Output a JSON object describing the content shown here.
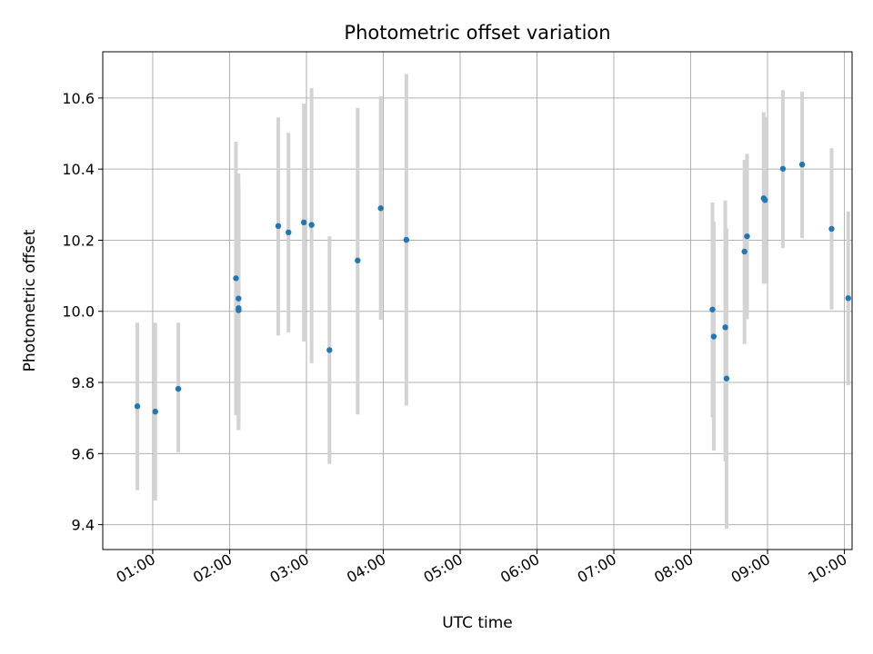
{
  "chart_data": {
    "type": "scatter",
    "title": "Photometric offset variation",
    "xlabel": "UTC time",
    "ylabel": "Photometric offset",
    "xlim": [
      "00:21",
      "10:06"
    ],
    "ylim": [
      9.33,
      10.73
    ],
    "grid": true,
    "x_ticks": [
      "01:00",
      "02:00",
      "03:00",
      "04:00",
      "05:00",
      "06:00",
      "07:00",
      "08:00",
      "09:00",
      "10:00"
    ],
    "y_ticks": [
      9.4,
      9.6,
      9.8,
      10.0,
      10.2,
      10.4,
      10.6
    ],
    "y_tick_labels": [
      "9.4",
      "9.6",
      "9.8",
      "10.0",
      "10.2",
      "10.4",
      "10.6"
    ],
    "colors": {
      "point": "#1f77b4",
      "errorbar": "#d3d3d3",
      "grid": "#b0b0b0"
    },
    "points": [
      {
        "t": "00:48",
        "y": 9.733,
        "lo": 9.497,
        "hi": 9.968
      },
      {
        "t": "01:02",
        "y": 9.718,
        "lo": 9.468,
        "hi": 9.968
      },
      {
        "t": "01:20",
        "y": 9.782,
        "lo": 9.603,
        "hi": 9.968
      },
      {
        "t": "02:05",
        "y": 10.093,
        "lo": 9.708,
        "hi": 10.477
      },
      {
        "t": "02:07",
        "y": 10.036,
        "lo": 9.685,
        "hi": 10.388
      },
      {
        "t": "02:07",
        "y": 10.009,
        "lo": 9.666,
        "hi": 10.349
      },
      {
        "t": "02:07",
        "y": 10.003,
        "lo": 9.666,
        "hi": 10.349
      },
      {
        "t": "02:38",
        "y": 10.24,
        "lo": 9.932,
        "hi": 10.545
      },
      {
        "t": "02:46",
        "y": 10.222,
        "lo": 9.941,
        "hi": 10.502
      },
      {
        "t": "02:58",
        "y": 10.25,
        "lo": 9.915,
        "hi": 10.584
      },
      {
        "t": "03:04",
        "y": 10.243,
        "lo": 9.854,
        "hi": 10.628
      },
      {
        "t": "03:18",
        "y": 9.891,
        "lo": 9.571,
        "hi": 10.211
      },
      {
        "t": "03:40",
        "y": 10.143,
        "lo": 9.71,
        "hi": 10.572
      },
      {
        "t": "03:58",
        "y": 10.29,
        "lo": 9.976,
        "hi": 10.605
      },
      {
        "t": "04:18",
        "y": 10.201,
        "lo": 9.735,
        "hi": 10.667
      },
      {
        "t": "08:17",
        "y": 10.005,
        "lo": 9.702,
        "hi": 10.306
      },
      {
        "t": "08:18",
        "y": 9.929,
        "lo": 9.608,
        "hi": 10.252
      },
      {
        "t": "08:27",
        "y": 9.955,
        "lo": 9.578,
        "hi": 10.312
      },
      {
        "t": "08:28",
        "y": 9.811,
        "lo": 9.389,
        "hi": 10.233
      },
      {
        "t": "08:42",
        "y": 10.168,
        "lo": 9.908,
        "hi": 10.426
      },
      {
        "t": "08:44",
        "y": 10.211,
        "lo": 9.978,
        "hi": 10.443
      },
      {
        "t": "08:57",
        "y": 10.318,
        "lo": 10.078,
        "hi": 10.56
      },
      {
        "t": "08:58",
        "y": 10.313,
        "lo": 10.078,
        "hi": 10.547
      },
      {
        "t": "09:12",
        "y": 10.401,
        "lo": 10.178,
        "hi": 10.622
      },
      {
        "t": "09:27",
        "y": 10.413,
        "lo": 10.206,
        "hi": 10.618
      },
      {
        "t": "09:50",
        "y": 10.232,
        "lo": 10.005,
        "hi": 10.459
      },
      {
        "t": "10:03",
        "y": 10.037,
        "lo": 9.792,
        "hi": 10.281
      }
    ]
  }
}
